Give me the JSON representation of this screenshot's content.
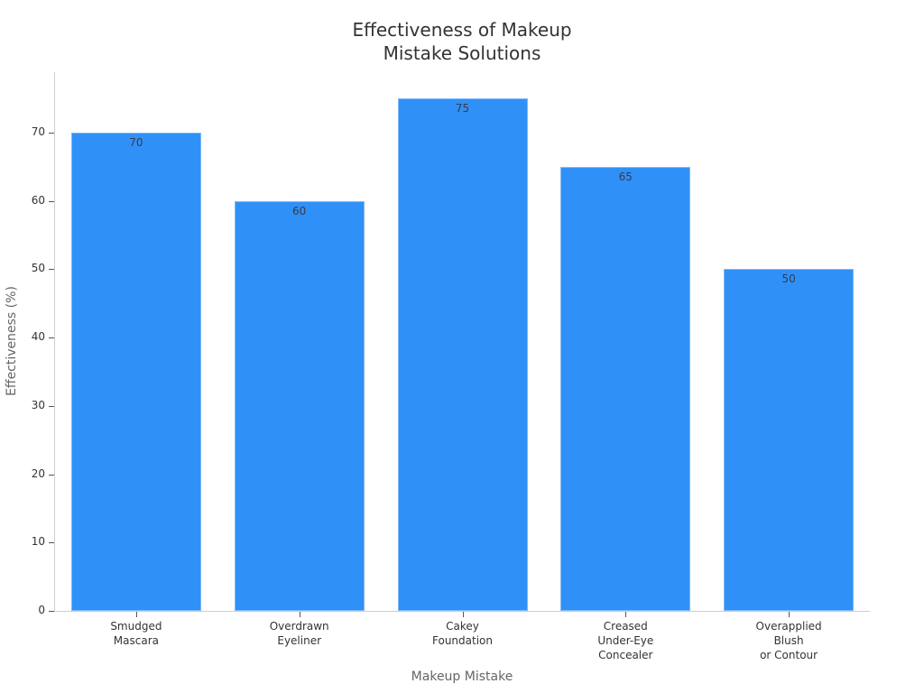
{
  "chart_data": {
    "type": "bar",
    "title": "Effectiveness of Makeup Mistake Solutions",
    "title_lines": [
      "Effectiveness of Makeup",
      "Mistake Solutions"
    ],
    "xlabel": "Makeup Mistake",
    "ylabel": "Effectiveness (%)",
    "categories": [
      "Smudged Mascara",
      "Overdrawn Eyeliner",
      "Cakey Foundation",
      "Creased Under-Eye Concealer",
      "Overapplied Blush or Contour"
    ],
    "category_lines": [
      [
        "Smudged",
        "Mascara"
      ],
      [
        "Overdrawn",
        "Eyeliner"
      ],
      [
        "Cakey",
        "Foundation"
      ],
      [
        "Creased",
        "Under-Eye",
        "Concealer"
      ],
      [
        "Overapplied",
        "Blush",
        "or Contour"
      ]
    ],
    "values": [
      70,
      60,
      75,
      65,
      50
    ],
    "data_labels": [
      "70",
      "60",
      "75",
      "65",
      "50"
    ],
    "yticks": [
      0,
      10,
      20,
      30,
      40,
      50,
      60,
      70
    ],
    "ylim": [
      0,
      78.8
    ],
    "grid": false,
    "legend": null,
    "bar_color": "#2f91f7"
  }
}
